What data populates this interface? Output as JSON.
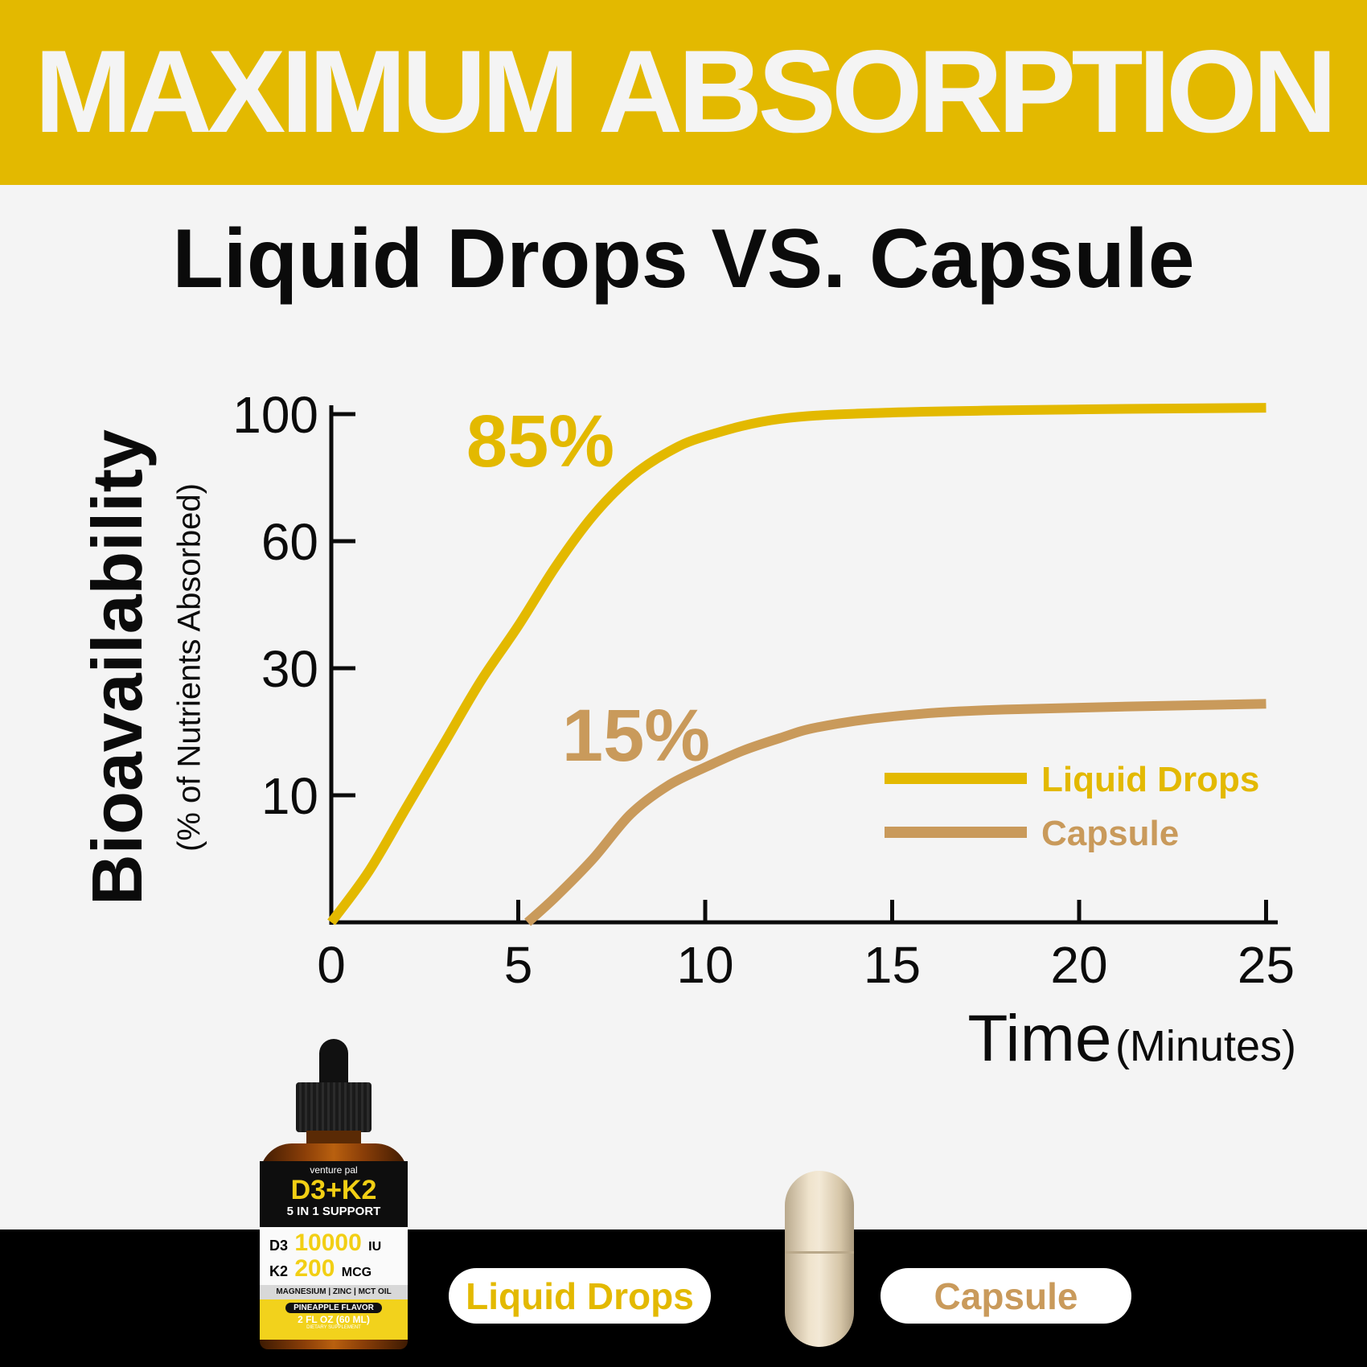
{
  "banner": {
    "title": "MAXIMUM ABSORPTION"
  },
  "subtitle": "Liquid Drops VS. Capsule",
  "colors": {
    "brand_yellow": "#e3b900",
    "capsule_tan": "#c99a5b",
    "background": "#f4f4f4",
    "text": "#0b0b0b"
  },
  "chart_data": {
    "type": "line",
    "ylabel": "Bioavailability",
    "ylabel_sub": "(% of Nutrients Absorbed)",
    "xlabel": "Time",
    "xlabel_unit": "(Minutes)",
    "x_ticks": [
      "0",
      "5",
      "10",
      "15",
      "20",
      "25"
    ],
    "x_tick_values": [
      0,
      5,
      10,
      15,
      20,
      25
    ],
    "y_ticks": [
      "10",
      "30",
      "60",
      "100"
    ],
    "y_tick_values": [
      0,
      10,
      30,
      60,
      100
    ],
    "y_scale": "non-uniform (ticks evenly spaced)",
    "xlim": [
      0,
      25
    ],
    "grid": false,
    "legend_position": "right",
    "series": [
      {
        "name": "Liquid Drops",
        "color": "#e3b900",
        "annotation": "85%",
        "points": [
          [
            0,
            0
          ],
          [
            1,
            4
          ],
          [
            2,
            9
          ],
          [
            3,
            18
          ],
          [
            4,
            28
          ],
          [
            5,
            40
          ],
          [
            6,
            54
          ],
          [
            7,
            68
          ],
          [
            8,
            80
          ],
          [
            9,
            88
          ],
          [
            10,
            93
          ],
          [
            12,
            98.5
          ],
          [
            15,
            100.5
          ],
          [
            20,
            101.5
          ],
          [
            25,
            102
          ]
        ]
      },
      {
        "name": "Capsule",
        "color": "#c99a5b",
        "annotation": "15%",
        "points": [
          [
            5.25,
            0
          ],
          [
            6,
            2
          ],
          [
            7,
            5
          ],
          [
            8,
            8.5
          ],
          [
            9,
            11.5
          ],
          [
            10,
            14.4
          ],
          [
            11,
            17
          ],
          [
            12,
            19
          ],
          [
            13,
            20.7
          ],
          [
            15,
            22.4
          ],
          [
            18,
            23.5
          ],
          [
            25,
            24.4
          ]
        ]
      }
    ]
  },
  "bottom": {
    "pill_liquid": "Liquid Drops",
    "pill_capsule": "Capsule"
  },
  "bottle_label": {
    "brand": "venture pal",
    "product": "D3+K2",
    "support": "5 IN 1 SUPPORT",
    "d3": "D3",
    "d3_amount": "10000",
    "d3_unit": "IU",
    "k2": "K2",
    "k2_amount": "200",
    "k2_unit": "MCG",
    "minerals": "MAGNESIUM | ZINC | MCT OIL",
    "flavor": "PINEAPPLE FLAVOR",
    "volume": "2 FL OZ (60 ML)",
    "type": "DIETARY SUPPLEMENT"
  }
}
